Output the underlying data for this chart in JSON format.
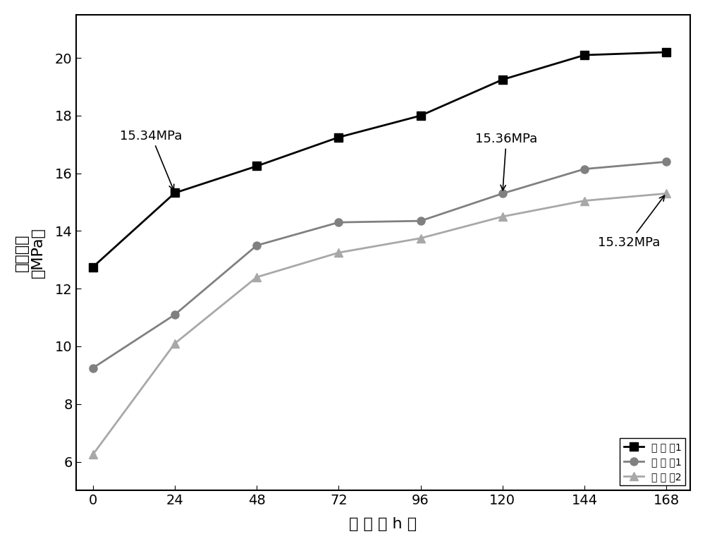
{
  "x": [
    0,
    24,
    48,
    72,
    96,
    120,
    144,
    168
  ],
  "series1": {
    "label": "实 施 例1",
    "y": [
      12.75,
      15.32,
      16.25,
      17.25,
      18.0,
      19.25,
      20.1,
      20.2
    ],
    "color": "#000000",
    "marker": "s",
    "linestyle": "-"
  },
  "series2": {
    "label": "对 比 例1",
    "y": [
      9.25,
      11.1,
      13.5,
      14.3,
      14.35,
      15.3,
      16.15,
      16.4
    ],
    "color": "#808080",
    "marker": "o",
    "linestyle": "-"
  },
  "series3": {
    "label": "对 比 例2",
    "y": [
      6.25,
      10.1,
      12.4,
      13.25,
      13.75,
      14.5,
      15.05,
      15.3
    ],
    "color": "#a8a8a8",
    "marker": "^",
    "linestyle": "-"
  },
  "xlabel": "时 间 （ h ）",
  "ylabel_line1": "弯曲强度",
  "ylabel_line2": "（MPa）",
  "xlim": [
    -5,
    175
  ],
  "ylim": [
    5,
    21.5
  ],
  "xticks": [
    0,
    24,
    48,
    72,
    96,
    120,
    144,
    168
  ],
  "yticks": [
    6,
    8,
    10,
    12,
    14,
    16,
    18,
    20
  ],
  "background_color": "#ffffff",
  "fontsize_tick": 14,
  "fontsize_label": 16,
  "fontsize_legend": 14,
  "fontsize_annotation": 13,
  "linewidth": 2.0,
  "markersize": 8
}
